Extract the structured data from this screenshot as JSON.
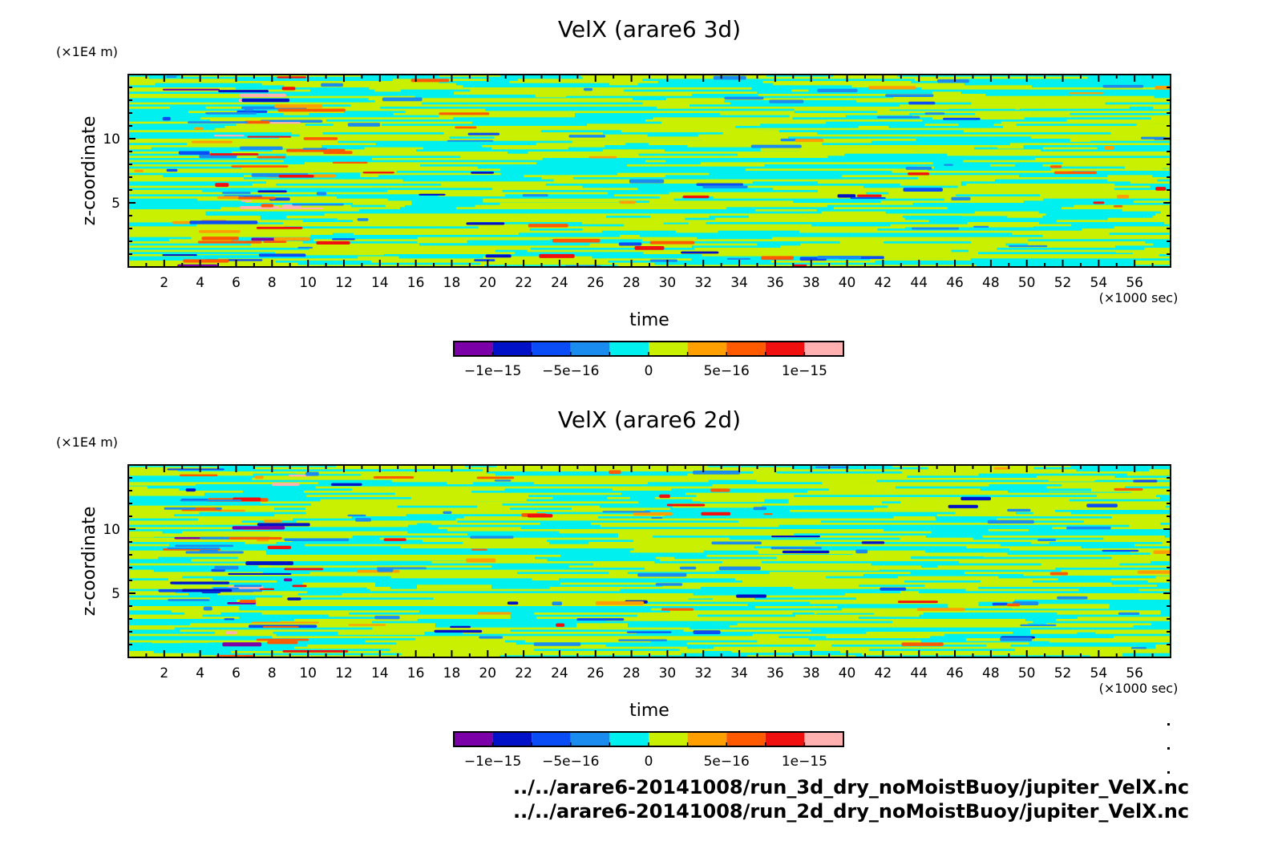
{
  "chart_data": [
    {
      "type": "heatmap",
      "title": "VelX (arare6 3d)",
      "xlabel": "time",
      "x_unit": "(×1000 sec)",
      "ylabel": "z-coordinate",
      "y_unit": "(×1E4 m)",
      "xlim": [
        0,
        58
      ],
      "ylim": [
        0,
        15
      ],
      "xticks": [
        "2",
        "4",
        "6",
        "8",
        "10",
        "12",
        "14",
        "16",
        "18",
        "20",
        "22",
        "24",
        "26",
        "28",
        "30",
        "32",
        "34",
        "36",
        "38",
        "40",
        "42",
        "44",
        "46",
        "48",
        "50",
        "52",
        "54",
        "56"
      ],
      "yticks": [
        "5",
        "10"
      ],
      "colorbar": {
        "levels": 10,
        "labels": [
          "−1e−15",
          "−5e−16",
          "0",
          "5e−16",
          "1e−15"
        ],
        "colors": [
          "#7b00a8",
          "#0011c8",
          "#0a4cf5",
          "#1a8cf0",
          "#00f0f0",
          "#c8f000",
          "#ffa000",
          "#ff5a00",
          "#f01010",
          "#ffb0b0"
        ]
      }
    },
    {
      "type": "heatmap",
      "title": "VelX (arare6 2d)",
      "xlabel": "time",
      "x_unit": "(×1000 sec)",
      "ylabel": "z-coordinate",
      "y_unit": "(×1E4 m)",
      "xlim": [
        0,
        58
      ],
      "ylim": [
        0,
        15
      ],
      "xticks": [
        "2",
        "4",
        "6",
        "8",
        "10",
        "12",
        "14",
        "16",
        "18",
        "20",
        "22",
        "24",
        "26",
        "28",
        "30",
        "32",
        "34",
        "36",
        "38",
        "40",
        "42",
        "44",
        "46",
        "48",
        "50",
        "52",
        "54",
        "56"
      ],
      "yticks": [
        "5",
        "10"
      ],
      "colorbar": {
        "levels": 10,
        "labels": [
          "−1e−15",
          "−5e−16",
          "0",
          "5e−16",
          "1e−15"
        ],
        "colors": [
          "#7b00a8",
          "#0011c8",
          "#0a4cf5",
          "#1a8cf0",
          "#00f0f0",
          "#c8f000",
          "#ffa000",
          "#ff5a00",
          "#f01010",
          "#ffb0b0"
        ]
      }
    }
  ],
  "sources": [
    "../../arare6-20141008/run_3d_dry_noMoistBuoy/jupiter_VelX.nc",
    "../../arare6-20141008/run_2d_dry_noMoistBuoy/jupiter_VelX.nc"
  ]
}
